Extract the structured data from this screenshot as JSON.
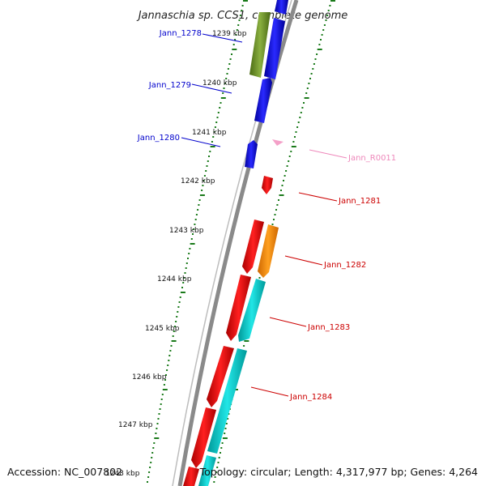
{
  "title": "Jannaschia sp. CCS1, complete genome",
  "footer": {
    "accession": "Accession: NC_007802",
    "stats": "Topology: circular; Length: 4,317,977 bp; Genes: 4,264"
  },
  "ticks": [
    {
      "label": "1239 kbp"
    },
    {
      "label": "1240 kbp"
    },
    {
      "label": "1241 kbp"
    },
    {
      "label": "1242 kbp"
    },
    {
      "label": "1243 kbp"
    },
    {
      "label": "1244 kbp"
    },
    {
      "label": "1245 kbp"
    },
    {
      "label": "1246 kbp"
    },
    {
      "label": "1247 kbp"
    },
    {
      "label": "1248 kbp"
    }
  ],
  "genes": [
    {
      "name": "Jann_1278",
      "color": "#0000cc",
      "strand": "-"
    },
    {
      "name": "Jann_1279",
      "color": "#0000cc",
      "strand": "-"
    },
    {
      "name": "Jann_1280",
      "color": "#0000cc",
      "strand": "-"
    },
    {
      "name": "Jann_R0011",
      "color": "#ee88bb",
      "strand": "+"
    },
    {
      "name": "Jann_1281",
      "color": "#cc0000",
      "strand": "+"
    },
    {
      "name": "Jann_1282",
      "color": "#cc0000",
      "strand": "+"
    },
    {
      "name": "Jann_1283",
      "color": "#cc0000",
      "strand": "+"
    },
    {
      "name": "Jann_1284",
      "color": "#cc0000",
      "strand": "+"
    }
  ],
  "colors": {
    "backbone": "#8a8a8a",
    "tick": "#1a7a1a",
    "forward_cds": "#ff0000",
    "reverse_cds": "#0000ff",
    "rrna": "#ff8800",
    "trna": "#ee88bb",
    "olive": "#6b8e23",
    "cyan": "#00cccc"
  }
}
